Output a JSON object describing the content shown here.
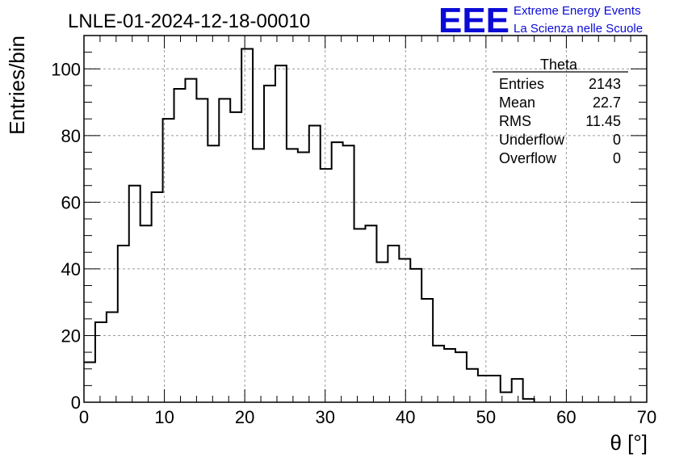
{
  "chart_data": {
    "type": "bar",
    "title": "LNLE-01-2024-12-18-00010",
    "xlabel": "θ [°]",
    "ylabel": "Entries/bin",
    "xlim": [
      0,
      70
    ],
    "ylim": [
      0,
      110
    ],
    "grid": true,
    "bin_edges": [
      0,
      1.4,
      2.8,
      4.2,
      5.6,
      7,
      8.4,
      9.8,
      11.2,
      12.6,
      14,
      15.4,
      16.8,
      18.2,
      19.6,
      21,
      22.4,
      23.8,
      25.2,
      26.6,
      28,
      29.4,
      30.8,
      32.2,
      33.6,
      35,
      36.4,
      37.8,
      39.2,
      40.6,
      42,
      43.4,
      44.8,
      46.2,
      47.6,
      49,
      50.4,
      51.8,
      53.2,
      54.6,
      56
    ],
    "values": [
      12,
      24,
      27,
      47,
      65,
      53,
      63,
      85,
      94,
      97,
      91,
      77,
      91,
      87,
      106,
      76,
      95,
      101,
      76,
      75,
      83,
      70,
      78,
      77,
      52,
      53,
      42,
      47,
      43,
      40,
      31,
      17,
      16,
      15,
      10,
      8,
      8,
      3,
      7,
      1
    ],
    "xticks": [
      "0",
      "10",
      "20",
      "30",
      "40",
      "50",
      "60",
      "70"
    ],
    "yticks": [
      "0",
      "20",
      "40",
      "60",
      "80",
      "100"
    ],
    "stats": {
      "title": "Theta",
      "rows": [
        {
          "label": "Entries",
          "value": "2143"
        },
        {
          "label": "Mean",
          "value": "22.7"
        },
        {
          "label": "RMS",
          "value": "11.45"
        },
        {
          "label": "Underflow",
          "value": "0"
        },
        {
          "label": "Overflow",
          "value": "0"
        }
      ]
    },
    "logo": {
      "mark": "EEE",
      "line1": "Extreme Energy Events",
      "line2": "La Scienza nelle Scuole",
      "color": "#0b0bd6"
    }
  }
}
